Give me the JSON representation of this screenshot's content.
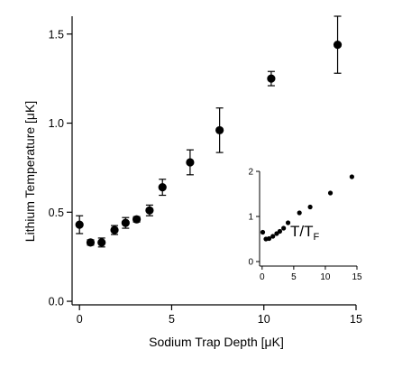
{
  "chart_data": [
    {
      "type": "scatter",
      "role": "main",
      "xlabel": "Sodium Trap Depth [μK]",
      "ylabel": "Lithium Temperature [μK]",
      "xlim": [
        -0.4,
        15
      ],
      "ylim": [
        -0.02,
        1.6
      ],
      "x_ticks": [
        0,
        5,
        10,
        15
      ],
      "y_ticks": [
        0.0,
        0.5,
        1.0,
        1.5
      ],
      "x_tick_labels": [
        "0",
        "5",
        "10",
        "15"
      ],
      "y_tick_labels": [
        "0.0",
        "0.5",
        "1.0",
        "1.5"
      ],
      "grid": false,
      "marker": "filled-circle",
      "color": "#000000",
      "series": [
        {
          "points": [
            {
              "x": 0.0,
              "y": 0.43,
              "err": 0.05
            },
            {
              "x": 0.6,
              "y": 0.33,
              "err": 0.015
            },
            {
              "x": 1.2,
              "y": 0.33,
              "err": 0.025
            },
            {
              "x": 1.9,
              "y": 0.4,
              "err": 0.025
            },
            {
              "x": 2.5,
              "y": 0.44,
              "err": 0.03
            },
            {
              "x": 3.1,
              "y": 0.46,
              "err": 0.015
            },
            {
              "x": 3.8,
              "y": 0.51,
              "err": 0.03
            },
            {
              "x": 4.5,
              "y": 0.64,
              "err": 0.045
            },
            {
              "x": 6.0,
              "y": 0.78,
              "err": 0.07
            },
            {
              "x": 7.6,
              "y": 0.96,
              "err": 0.125
            },
            {
              "x": 10.4,
              "y": 1.25,
              "err": 0.04
            },
            {
              "x": 14.0,
              "y": 1.44,
              "err": 0.16
            }
          ]
        }
      ]
    },
    {
      "type": "scatter",
      "role": "inset",
      "annotation": "T/T",
      "annotation_sub": "F",
      "xlim": [
        -0.4,
        15
      ],
      "ylim": [
        -0.1,
        2
      ],
      "x_ticks": [
        0,
        5,
        10,
        15
      ],
      "y_ticks": [
        0,
        1,
        2
      ],
      "x_tick_labels": [
        "0",
        "5",
        "10",
        "15"
      ],
      "y_tick_labels": [
        "0",
        "1",
        "2"
      ],
      "grid": false,
      "marker": "filled-circle",
      "color": "#000000",
      "series": [
        {
          "points": [
            {
              "x": 0.1,
              "y": 0.65
            },
            {
              "x": 0.6,
              "y": 0.5
            },
            {
              "x": 1.1,
              "y": 0.51
            },
            {
              "x": 1.7,
              "y": 0.56
            },
            {
              "x": 2.3,
              "y": 0.62
            },
            {
              "x": 2.8,
              "y": 0.67
            },
            {
              "x": 3.4,
              "y": 0.74
            },
            {
              "x": 4.1,
              "y": 0.86
            },
            {
              "x": 5.9,
              "y": 1.08
            },
            {
              "x": 7.6,
              "y": 1.21
            },
            {
              "x": 10.8,
              "y": 1.52
            },
            {
              "x": 14.2,
              "y": 1.88
            }
          ]
        }
      ]
    }
  ]
}
